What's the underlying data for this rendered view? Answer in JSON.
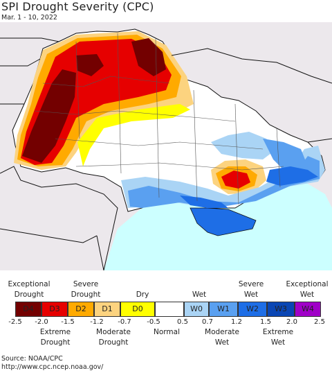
{
  "header": {
    "title": "SPI Drought Severity (CPC)",
    "date_range": "Mar. 1 - 10, 2022"
  },
  "colors": {
    "land": "#ffffff",
    "outside": "#ece8ec",
    "sea": "#ccffff",
    "border": "#111111",
    "d4": "#730000",
    "d3": "#e60000",
    "d2": "#ffaa00",
    "d1": "#fcd37f",
    "d0": "#ffff00",
    "normal": "#ffffff",
    "w0": "#aad4f5",
    "w1": "#5aa0f0",
    "w2": "#1e6ee6",
    "w3": "#0a46b4",
    "w4": "#a000c8"
  },
  "legend": {
    "top_labels": [
      "Exceptional\nDrought",
      "Severe\nDrought",
      "Dry",
      "Wet",
      "Severe\nWet",
      "Exceptional\nWet"
    ],
    "categories": [
      "D4",
      "D3",
      "D2",
      "D1",
      "D0",
      "",
      "W0",
      "W1",
      "W2",
      "W3",
      "W4"
    ],
    "ticks": [
      "-2.5",
      "-2.0",
      "-1.5",
      "-1.2",
      "-0.7",
      "-0.5",
      "0.5",
      "0.7",
      "1.2",
      "1.5",
      "2.0",
      "2.5"
    ],
    "bottom_labels": [
      "Extreme\nDrought",
      "Moderate\nDrought",
      "Normal",
      "Moderate\nWet",
      "Extreme\nWet"
    ]
  },
  "source": {
    "line1": "Source: NOAA/CPC",
    "line2": "http://www.cpc.ncep.noaa.gov/"
  }
}
